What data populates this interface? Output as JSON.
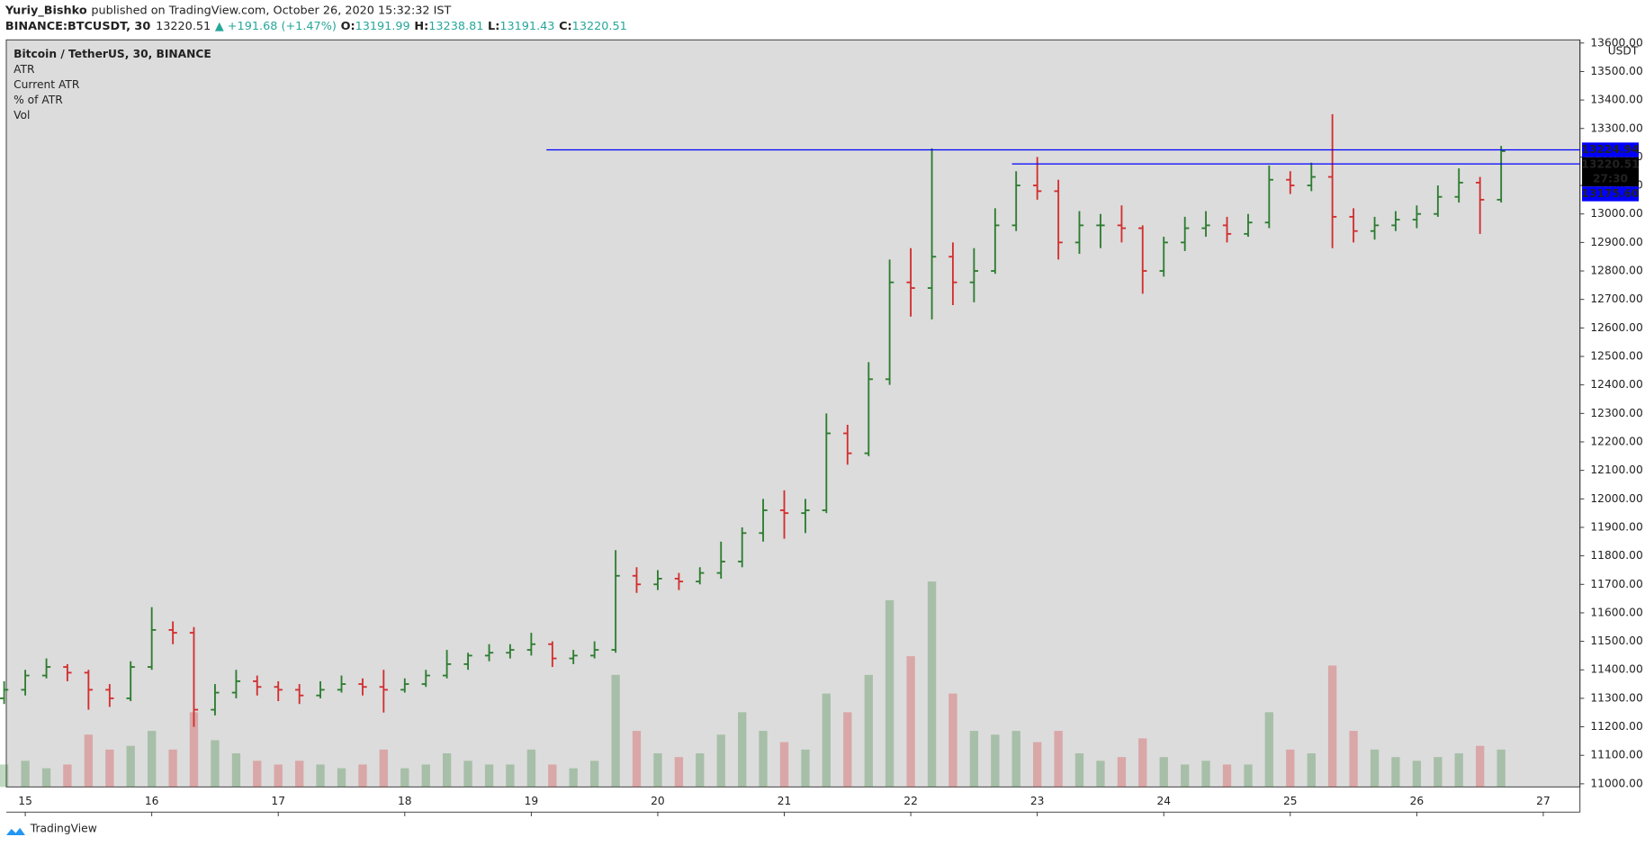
{
  "header": {
    "author": "Yuriy_Bishko",
    "published": "published on TradingView.com, October 26, 2020 15:32:32 IST",
    "symbol": "BINANCE:BTCUSDT, 30",
    "last": "13220.51",
    "change": "▲ +191.68 (+1.47%)",
    "ohlc": [
      {
        "key": "O:",
        "value": "13191.99"
      },
      {
        "key": "H:",
        "value": "13238.81"
      },
      {
        "key": "L:",
        "value": "13191.43"
      },
      {
        "key": "C:",
        "value": "13220.51"
      }
    ]
  },
  "legend": [
    "Bitcoin / TetherUS, 30, BINANCE",
    "ATR",
    "Current ATR",
    "% of ATR",
    "Vol"
  ],
  "currency": "USDT",
  "countdown": "27:30",
  "footer": "TradingView",
  "chart_data": {
    "type": "ohlc",
    "x": [
      14.833,
      15.0,
      15.167,
      15.333,
      15.5,
      15.667,
      15.833,
      16.0,
      16.167,
      16.333,
      16.5,
      16.667,
      16.833,
      17.0,
      17.167,
      17.333,
      17.5,
      17.667,
      17.833,
      18.0,
      18.167,
      18.333,
      18.5,
      18.667,
      18.833,
      19.0,
      19.167,
      19.333,
      19.5,
      19.667,
      19.833,
      20.0,
      20.167,
      20.333,
      20.5,
      20.667,
      20.833,
      21.0,
      21.167,
      21.333,
      21.5,
      21.667,
      21.833,
      22.0,
      22.167,
      22.333,
      22.5,
      22.667,
      22.833,
      23.0,
      23.167,
      23.333,
      23.5,
      23.667,
      23.833,
      24.0,
      24.167,
      24.333,
      24.5,
      24.667,
      24.833,
      25.0,
      25.167,
      25.333,
      25.5,
      25.667,
      25.833,
      26.0,
      26.167,
      26.333,
      26.5,
      26.667
    ],
    "open": [
      11300,
      11330,
      11380,
      11410,
      11390,
      11330,
      11300,
      11410,
      11540,
      11530,
      11260,
      11320,
      11360,
      11340,
      11330,
      11310,
      11330,
      11350,
      11340,
      11330,
      11350,
      11380,
      11420,
      11450,
      11460,
      11470,
      11490,
      11440,
      11450,
      11470,
      11730,
      11700,
      11720,
      11710,
      11740,
      11780,
      11880,
      11960,
      11950,
      11960,
      12230,
      12160,
      12420,
      12760,
      12740,
      12850,
      12760,
      12800,
      12960,
      13100,
      13080,
      12900,
      12960,
      12960,
      12950,
      12800,
      12900,
      12950,
      12960,
      12930,
      12970,
      13120,
      13100,
      13130,
      12990,
      12940,
      12960,
      12980,
      13000,
      13060,
      13110,
      13050
    ],
    "high": [
      11360,
      11400,
      11440,
      11420,
      11400,
      11350,
      11430,
      11620,
      11570,
      11550,
      11350,
      11400,
      11380,
      11360,
      11350,
      11360,
      11380,
      11370,
      11400,
      11370,
      11400,
      11470,
      11460,
      11490,
      11490,
      11530,
      11500,
      11470,
      11500,
      11820,
      11760,
      11750,
      11740,
      11760,
      11850,
      11900,
      12000,
      12030,
      12000,
      12300,
      12260,
      12480,
      12840,
      12880,
      13230,
      12900,
      12880,
      13020,
      13150,
      13200,
      13120,
      13010,
      13000,
      13030,
      12960,
      12920,
      12990,
      13010,
      12990,
      13000,
      13170,
      13150,
      13180,
      13350,
      13020,
      12990,
      13010,
      13030,
      13100,
      13160,
      13130,
      13238.81
    ],
    "low": [
      11280,
      11310,
      11370,
      11360,
      11260,
      11270,
      11290,
      11400,
      11490,
      11200,
      11240,
      11300,
      11310,
      11290,
      11280,
      11300,
      11320,
      11310,
      11250,
      11320,
      11340,
      11370,
      11400,
      11430,
      11440,
      11450,
      11410,
      11420,
      11440,
      11460,
      11670,
      11680,
      11680,
      11700,
      11720,
      11760,
      11850,
      11860,
      11880,
      11950,
      12120,
      12150,
      12400,
      12640,
      12630,
      12680,
      12690,
      12790,
      12940,
      13050,
      12840,
      12860,
      12880,
      12900,
      12720,
      12780,
      12870,
      12920,
      12900,
      12920,
      12950,
      13070,
      13080,
      12880,
      12900,
      12910,
      12940,
      12950,
      12990,
      13040,
      12930,
      13040
    ],
    "close": [
      11330,
      11380,
      11410,
      11390,
      11330,
      11300,
      11410,
      11540,
      11530,
      11260,
      11320,
      11360,
      11340,
      11330,
      11310,
      11330,
      11350,
      11340,
      11330,
      11350,
      11380,
      11420,
      11450,
      11460,
      11470,
      11490,
      11440,
      11450,
      11470,
      11730,
      11700,
      11720,
      11710,
      11740,
      11780,
      11880,
      11960,
      11950,
      11960,
      12230,
      12160,
      12420,
      12760,
      12740,
      12850,
      12760,
      12800,
      12960,
      13100,
      13080,
      12900,
      12960,
      12960,
      12950,
      12800,
      12900,
      12950,
      12960,
      12930,
      12970,
      13120,
      13100,
      13130,
      12990,
      12940,
      12960,
      12980,
      13000,
      13060,
      13110,
      13050,
      13220.51
    ],
    "volume": [
      12,
      14,
      10,
      12,
      28,
      20,
      22,
      30,
      20,
      40,
      25,
      18,
      14,
      12,
      14,
      12,
      10,
      12,
      20,
      10,
      12,
      18,
      14,
      12,
      12,
      20,
      12,
      10,
      14,
      60,
      30,
      18,
      16,
      18,
      28,
      40,
      30,
      24,
      20,
      50,
      40,
      60,
      100,
      70,
      110,
      50,
      30,
      28,
      30,
      24,
      30,
      18,
      14,
      16,
      26,
      16,
      12,
      14,
      12,
      12,
      40,
      20,
      18,
      65,
      30,
      20,
      16,
      14,
      16,
      18,
      22,
      20
    ],
    "up_color": "#2e7d32",
    "down_color": "#d32f2f",
    "xlim": [
      14.85,
      27.29
    ],
    "xticks": [
      15,
      16,
      17,
      18,
      19,
      20,
      21,
      22,
      23,
      24,
      25,
      26,
      27
    ],
    "ylim": [
      10989,
      13611
    ],
    "yticks": [
      {
        "value": 11000,
        "label": "11000.00"
      },
      {
        "value": 11100,
        "label": "11100.00"
      },
      {
        "value": 11200,
        "label": "11200.00"
      },
      {
        "value": 11300,
        "label": "11300.00"
      },
      {
        "value": 11400,
        "label": "11400.00"
      },
      {
        "value": 11500,
        "label": "11500.00"
      },
      {
        "value": 11600,
        "label": "11600.00"
      },
      {
        "value": 11700,
        "label": "11700.00"
      },
      {
        "value": 11800,
        "label": "11800.00"
      },
      {
        "value": 11900,
        "label": "11900.00"
      },
      {
        "value": 12000,
        "label": "12000.00"
      },
      {
        "value": 12100,
        "label": "12100.00"
      },
      {
        "value": 12200,
        "label": "12200.00"
      },
      {
        "value": 12300,
        "label": "12300.00"
      },
      {
        "value": 12400,
        "label": "12400.00"
      },
      {
        "value": 12500,
        "label": "12500.00"
      },
      {
        "value": 12600,
        "label": "12600.00"
      },
      {
        "value": 12700,
        "label": "12700.00"
      },
      {
        "value": 12800,
        "label": "12800.00"
      },
      {
        "value": 12900,
        "label": "12900.00"
      },
      {
        "value": 13000,
        "label": "13000.00"
      },
      {
        "value": 13100,
        "label": "13100.00"
      },
      {
        "value": 13200,
        "label": "13200.00"
      },
      {
        "value": 13300,
        "label": "13300.00"
      },
      {
        "value": 13400,
        "label": "13400.00"
      },
      {
        "value": 13500,
        "label": "13500.00"
      },
      {
        "value": 13600,
        "label": "13600.00"
      }
    ],
    "y2lim": [
      0,
      400
    ],
    "hlines": [
      {
        "value": 13224.94,
        "label": "13224.94",
        "x_start": 19.12,
        "color": "#0000ff"
      },
      {
        "value": 13175.6,
        "label": "13175.60",
        "x_start": 22.8,
        "color": "#0000ff"
      }
    ],
    "last_price": {
      "value": 13220.51,
      "label": "13220.51",
      "color": "#000000"
    }
  }
}
